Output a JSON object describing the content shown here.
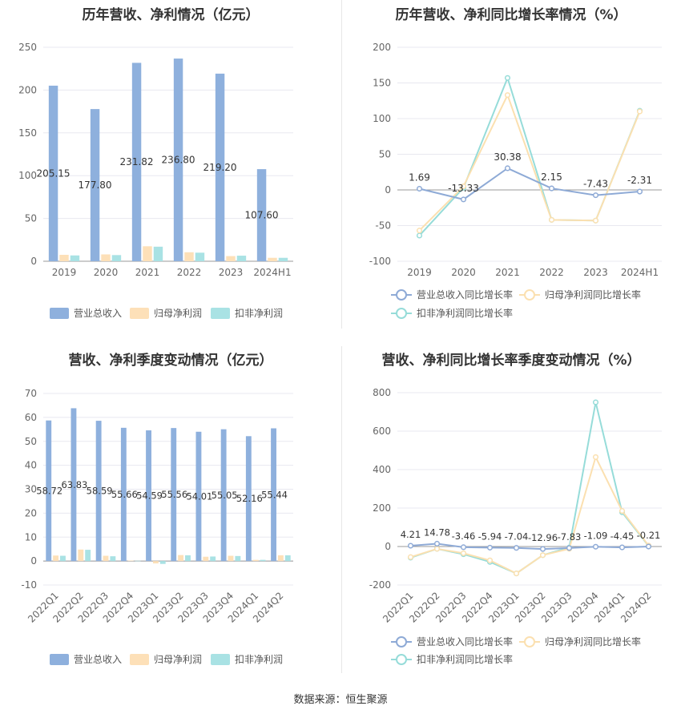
{
  "source": {
    "label": "数据来源：恒生聚源"
  },
  "colors": {
    "revenue": "#8eb0dd",
    "parent_profit": "#fde0b8",
    "deducted_profit": "#a9e2e4",
    "rev_line": "#8eaad6",
    "parent_line": "#fbe0b0",
    "deducted_line": "#96dcd9",
    "grid": "#e8e8f0",
    "axis_text": "#666666"
  },
  "chart_data": [
    {
      "id": "annual-bar",
      "type": "bar",
      "title": "历年营收、净利情况（亿元）",
      "categories": [
        "2019",
        "2020",
        "2021",
        "2022",
        "2023",
        "2024H1"
      ],
      "ylim": [
        0,
        250
      ],
      "yticks": [
        0,
        50,
        100,
        150,
        200,
        250
      ],
      "series": [
        {
          "name": "营业总收入",
          "values": [
            205.15,
            177.8,
            231.82,
            236.8,
            219.2,
            107.6
          ],
          "labels": [
            "205.15",
            "177.80",
            "231.82",
            "236.80",
            "219.20",
            "107.60"
          ]
        },
        {
          "name": "归母净利润",
          "values": [
            7.5,
            8.0,
            17.5,
            10.5,
            6.0,
            4.0
          ]
        },
        {
          "name": "扣非净利润",
          "values": [
            6.8,
            7.2,
            17.0,
            10.0,
            6.5,
            4.0
          ]
        }
      ],
      "grid": true,
      "legend_position": "bottom"
    },
    {
      "id": "annual-growth",
      "type": "line",
      "title": "历年营收、净利同比增长率情况（%）",
      "categories": [
        "2019",
        "2020",
        "2021",
        "2022",
        "2023",
        "2024H1"
      ],
      "ylim": [
        -100,
        200
      ],
      "yticks": [
        -100,
        -50,
        0,
        50,
        100,
        150,
        200
      ],
      "series": [
        {
          "name": "营业总收入同比增长率",
          "values": [
            1.69,
            -13.33,
            30.38,
            2.15,
            -7.43,
            -2.31
          ],
          "labels": [
            "1.69",
            "-13.33",
            "30.38",
            "2.15",
            "-7.43",
            "-2.31"
          ]
        },
        {
          "name": "归母净利润同比增长率",
          "values": [
            -57,
            5,
            133,
            -42,
            -43,
            110
          ]
        },
        {
          "name": "扣非净利润同比增长率",
          "values": [
            -64,
            3,
            157,
            -42,
            -43,
            111
          ]
        }
      ],
      "grid": true,
      "legend_position": "bottom"
    },
    {
      "id": "quarterly-bar",
      "type": "bar",
      "title": "营收、净利季度变动情况（亿元）",
      "categories": [
        "2022Q1",
        "2022Q2",
        "2022Q3",
        "2022Q4",
        "2023Q1",
        "2023Q2",
        "2023Q3",
        "2023Q4",
        "2024Q1",
        "2024Q2"
      ],
      "ylim": [
        -10,
        70
      ],
      "yticks": [
        -10,
        0,
        10,
        20,
        30,
        40,
        50,
        60,
        70
      ],
      "series": [
        {
          "name": "营业总收入",
          "values": [
            58.72,
            63.83,
            58.59,
            55.66,
            54.59,
            55.56,
            54.01,
            55.05,
            52.16,
            55.44
          ],
          "labels": [
            "58.72",
            "63.83",
            "58.59",
            "55.66",
            "54.59",
            "55.56",
            "54.01",
            "55.05",
            "52.16",
            "55.44"
          ]
        },
        {
          "name": "归母净利润",
          "values": [
            2.3,
            4.8,
            2.2,
            0.2,
            -1.0,
            2.5,
            1.8,
            2.2,
            0.5,
            2.4
          ]
        },
        {
          "name": "扣非净利润",
          "values": [
            2.2,
            4.7,
            2.0,
            0.1,
            -1.2,
            2.4,
            1.9,
            2.1,
            0.5,
            2.4
          ]
        }
      ],
      "grid": true,
      "legend_position": "bottom"
    },
    {
      "id": "quarterly-growth",
      "type": "line",
      "title": "营收、净利同比增长率季度变动情况（%）",
      "categories": [
        "2022Q1",
        "2022Q2",
        "2022Q3",
        "2022Q4",
        "2023Q1",
        "2023Q2",
        "2023Q3",
        "2023Q4",
        "2024Q1",
        "2024Q2"
      ],
      "ylim": [
        -200,
        800
      ],
      "yticks": [
        -200,
        0,
        200,
        400,
        600,
        800
      ],
      "series": [
        {
          "name": "营业总收入同比增长率",
          "values": [
            4.21,
            14.78,
            -3.46,
            -5.94,
            -7.04,
            -12.96,
            -7.83,
            -1.09,
            -4.45,
            -0.21
          ],
          "labels": [
            "4.21",
            "14.78",
            "-3.46",
            "-5.94",
            "-7.04",
            "-12.96",
            "-7.83",
            "-1.09",
            "-4.45",
            "-0.21"
          ]
        },
        {
          "name": "归母净利润同比增长率",
          "values": [
            -55,
            -12,
            -35,
            -72,
            -140,
            -45,
            -12,
            465,
            185,
            5
          ]
        },
        {
          "name": "扣非净利润同比增长率",
          "values": [
            -58,
            -12,
            -40,
            -80,
            -140,
            -45,
            -5,
            750,
            178,
            3
          ]
        }
      ],
      "grid": true,
      "legend_position": "bottom"
    }
  ]
}
